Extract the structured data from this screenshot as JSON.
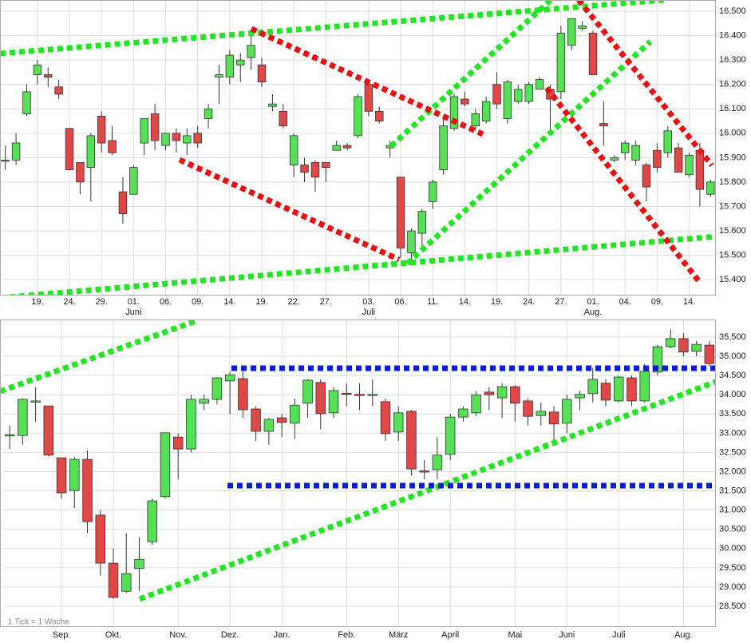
{
  "chart_data": [
    {
      "type": "candlestick",
      "up_color": "#55e055",
      "down_color": "#e04848",
      "grid": true,
      "categories": [
        null,
        null,
        null,
        "19.",
        null,
        null,
        "24.",
        null,
        null,
        "29.",
        null,
        null,
        "01.",
        null,
        null,
        "06.",
        null,
        null,
        "09.",
        null,
        null,
        "14.",
        null,
        null,
        "19.",
        null,
        null,
        "22.",
        null,
        null,
        "27.",
        null,
        null,
        null,
        "03.",
        null,
        null,
        "06.",
        null,
        null,
        "11.",
        null,
        null,
        "14.",
        null,
        null,
        "19.",
        null,
        null,
        "24.",
        null,
        null,
        "27.",
        null,
        null,
        "01.",
        null,
        null,
        "04.",
        null,
        null,
        "09.",
        null,
        null,
        "14.",
        null,
        null
      ],
      "month_labels": [
        {
          "value": 12,
          "label": "Juni"
        },
        {
          "value": 34,
          "label": "Juli"
        },
        {
          "value": 55,
          "label": "Aug."
        }
      ],
      "open": [
        15.89,
        15.89,
        16.08,
        16.24,
        16.24,
        16.19,
        16.02,
        15.88,
        15.86,
        16.07,
        15.97,
        15.76,
        15.75,
        15.96,
        16.08,
        15.95,
        16.0,
        15.96,
        16.0,
        16.06,
        16.23,
        16.23,
        16.28,
        16.31,
        16.28,
        16.11,
        16.09,
        15.87,
        15.87,
        15.88,
        15.88,
        15.93,
        15.95,
        15.99,
        16.2,
        16.09,
        15.94,
        15.82,
        15.51,
        15.59,
        15.72,
        15.85,
        16.02,
        16.14,
        16.03,
        16.05,
        16.2,
        16.06,
        16.13,
        16.13,
        16.18,
        16.18,
        16.17,
        16.36,
        16.43,
        16.41,
        16.04,
        15.89,
        15.92,
        15.89,
        15.87,
        15.93,
        15.92,
        15.94,
        15.83,
        15.93,
        15.75
      ],
      "high": [
        15.95,
        16.0,
        16.2,
        16.3,
        16.27,
        16.22,
        16.02,
        15.88,
        16.0,
        16.09,
        16.03,
        15.82,
        15.87,
        16.06,
        16.12,
        16.0,
        16.02,
        16.02,
        16.03,
        16.12,
        16.28,
        16.34,
        16.33,
        16.42,
        16.31,
        16.16,
        16.12,
        16.0,
        15.9,
        15.89,
        15.88,
        15.97,
        15.96,
        16.16,
        16.21,
        16.11,
        15.97,
        15.82,
        15.61,
        15.69,
        15.81,
        16.07,
        16.16,
        16.17,
        16.1,
        16.15,
        16.25,
        16.22,
        16.2,
        16.21,
        16.23,
        16.2,
        16.44,
        16.47,
        16.46,
        16.42,
        16.13,
        15.91,
        15.97,
        15.97,
        15.88,
        15.96,
        16.03,
        15.96,
        15.92,
        15.96,
        15.81
      ],
      "low": [
        15.85,
        15.87,
        16.07,
        16.2,
        16.19,
        16.14,
        15.85,
        15.75,
        15.72,
        15.92,
        15.91,
        15.63,
        15.75,
        15.91,
        15.93,
        15.93,
        15.92,
        15.91,
        15.94,
        16.02,
        16.12,
        16.2,
        16.21,
        16.26,
        16.19,
        16.09,
        16.02,
        15.82,
        15.8,
        15.76,
        15.8,
        15.93,
        15.93,
        15.98,
        16.07,
        16.04,
        15.9,
        15.49,
        15.48,
        15.53,
        15.69,
        15.83,
        16.01,
        16.11,
        16.01,
        16.04,
        16.1,
        16.04,
        16.12,
        16.12,
        16.18,
        16.0,
        16.14,
        16.34,
        16.42,
        16.24,
        15.95,
        15.88,
        15.89,
        15.87,
        15.72,
        15.84,
        15.9,
        15.84,
        15.82,
        15.7,
        15.74
      ],
      "close": [
        15.89,
        15.96,
        16.17,
        16.28,
        16.23,
        16.16,
        15.85,
        15.8,
        15.99,
        15.96,
        15.92,
        15.67,
        15.86,
        16.06,
        15.97,
        16.0,
        15.97,
        15.99,
        15.96,
        16.1,
        16.24,
        16.32,
        16.3,
        16.36,
        16.21,
        16.12,
        16.03,
        15.99,
        15.84,
        15.82,
        15.86,
        15.95,
        15.94,
        16.15,
        16.09,
        16.05,
        15.95,
        15.53,
        15.6,
        15.68,
        15.8,
        16.03,
        16.15,
        16.12,
        16.08,
        16.13,
        16.12,
        16.21,
        16.18,
        16.2,
        16.22,
        16.14,
        16.41,
        16.47,
        16.44,
        16.24,
        16.03,
        15.9,
        15.96,
        15.95,
        15.78,
        15.86,
        16.01,
        15.84,
        15.91,
        15.77,
        15.8
      ],
      "ylim": [
        15.335,
        16.546
      ],
      "yticks": [
        {
          "value": 15.4,
          "label": "15.400"
        },
        {
          "value": 15.5,
          "label": "15.500"
        },
        {
          "value": 15.6,
          "label": "15.600"
        },
        {
          "value": 15.7,
          "label": "15.700"
        },
        {
          "value": 15.8,
          "label": "15.800"
        },
        {
          "value": 15.9,
          "label": "15.900"
        },
        {
          "value": 16.0,
          "label": "16.000"
        },
        {
          "value": 16.1,
          "label": "16.100"
        },
        {
          "value": 16.2,
          "label": "16.200"
        },
        {
          "value": 16.3,
          "label": "16.300"
        },
        {
          "value": 16.4,
          "label": "16.400"
        },
        {
          "value": 16.5,
          "label": "16.500"
        }
      ]
    },
    {
      "type": "candlestick",
      "up_color": "#55e055",
      "down_color": "#e04848",
      "grid": true,
      "note": "1 Tick = 1 Woche",
      "categories": [
        null,
        null,
        null,
        null,
        "Sep.",
        null,
        null,
        null,
        "Okt.",
        null,
        null,
        null,
        null,
        "Nov.",
        null,
        null,
        null,
        "Dez.",
        null,
        null,
        null,
        "Jan.",
        null,
        null,
        null,
        null,
        "Feb.",
        null,
        null,
        null,
        "März",
        null,
        null,
        null,
        "April",
        null,
        null,
        null,
        null,
        "Mai",
        null,
        null,
        null,
        "Juni",
        null,
        null,
        null,
        "Juli",
        null,
        null,
        null,
        null,
        "Aug.",
        null,
        null
      ],
      "open": [
        32.93,
        32.94,
        33.82,
        33.71,
        32.36,
        31.51,
        32.32,
        30.87,
        29.62,
        28.89,
        29.48,
        30.18,
        31.35,
        32.9,
        32.59,
        33.78,
        33.88,
        34.36,
        34.42,
        33.63,
        33.05,
        33.4,
        33.26,
        33.78,
        34.32,
        33.53,
        34.04,
        34.01,
        34.0,
        33.82,
        33.03,
        33.57,
        32.02,
        32.05,
        32.45,
        33.42,
        33.53,
        34.07,
        33.92,
        34.21,
        33.84,
        33.46,
        33.55,
        33.26,
        33.92,
        34.03,
        34.3,
        33.84,
        34.44,
        33.84,
        34.59,
        35.25,
        35.46,
        35.13,
        35.29
      ],
      "high": [
        33.2,
        33.9,
        34.2,
        33.71,
        32.36,
        32.38,
        32.55,
        31.0,
        30.0,
        30.4,
        30.3,
        31.3,
        33.01,
        33.0,
        34.0,
        34.0,
        34.45,
        34.6,
        34.6,
        33.7,
        33.4,
        33.5,
        33.9,
        34.4,
        34.4,
        34.2,
        34.3,
        34.3,
        34.4,
        33.9,
        33.7,
        33.6,
        32.3,
        32.9,
        33.5,
        33.7,
        34.1,
        34.2,
        34.3,
        34.25,
        33.9,
        33.8,
        33.7,
        34.0,
        34.1,
        34.7,
        34.4,
        34.5,
        34.5,
        34.8,
        35.3,
        35.7,
        35.6,
        35.4,
        35.4
      ],
      "low": [
        32.59,
        32.7,
        33.3,
        32.4,
        31.3,
        31.05,
        30.4,
        29.3,
        28.7,
        28.85,
        28.9,
        30.1,
        31.3,
        31.8,
        32.5,
        33.6,
        33.75,
        33.5,
        33.4,
        32.8,
        32.7,
        32.9,
        32.85,
        33.4,
        33.1,
        33.4,
        33.7,
        33.6,
        33.7,
        32.8,
        32.8,
        31.9,
        31.8,
        31.8,
        32.3,
        33.3,
        33.45,
        33.6,
        33.4,
        33.3,
        33.2,
        33.2,
        32.8,
        33.0,
        33.6,
        33.8,
        33.7,
        33.8,
        33.7,
        33.8,
        34.5,
        35.2,
        35.0,
        35.0,
        34.75
      ],
      "close": [
        32.96,
        33.88,
        33.84,
        32.43,
        31.45,
        32.32,
        30.7,
        29.62,
        28.73,
        29.35,
        29.72,
        31.24,
        33.01,
        32.59,
        33.88,
        33.88,
        34.44,
        34.52,
        33.61,
        33.05,
        33.36,
        33.28,
        33.73,
        34.38,
        33.51,
        34.11,
        34.02,
        34.0,
        34.01,
        32.99,
        33.53,
        32.07,
        31.99,
        32.43,
        33.42,
        33.63,
        34.0,
        34.0,
        34.21,
        33.78,
        33.44,
        33.57,
        33.24,
        33.88,
        34.01,
        34.4,
        33.86,
        34.46,
        33.84,
        34.61,
        35.25,
        35.46,
        35.11,
        35.31,
        34.81
      ],
      "ylim": [
        27.96,
        35.957
      ],
      "yticks": [
        {
          "value": 28.5,
          "label": "28.500"
        },
        {
          "value": 29,
          "label": "29.000"
        },
        {
          "value": 29.5,
          "label": "29.500"
        },
        {
          "value": 30,
          "label": "30.000"
        },
        {
          "value": 30.5,
          "label": "30.500"
        },
        {
          "value": 31,
          "label": "31.000"
        },
        {
          "value": 31.5,
          "label": "31.500"
        },
        {
          "value": 32,
          "label": "32.000"
        },
        {
          "value": 32.5,
          "label": "32.500"
        },
        {
          "value": 33,
          "label": "33.000"
        },
        {
          "value": 33.5,
          "label": "33.500"
        },
        {
          "value": 34,
          "label": "34.000"
        },
        {
          "value": 34.5,
          "label": "34.500"
        },
        {
          "value": 35,
          "label": "35.000"
        },
        {
          "value": 35.5,
          "label": "35.500"
        }
      ]
    }
  ]
}
